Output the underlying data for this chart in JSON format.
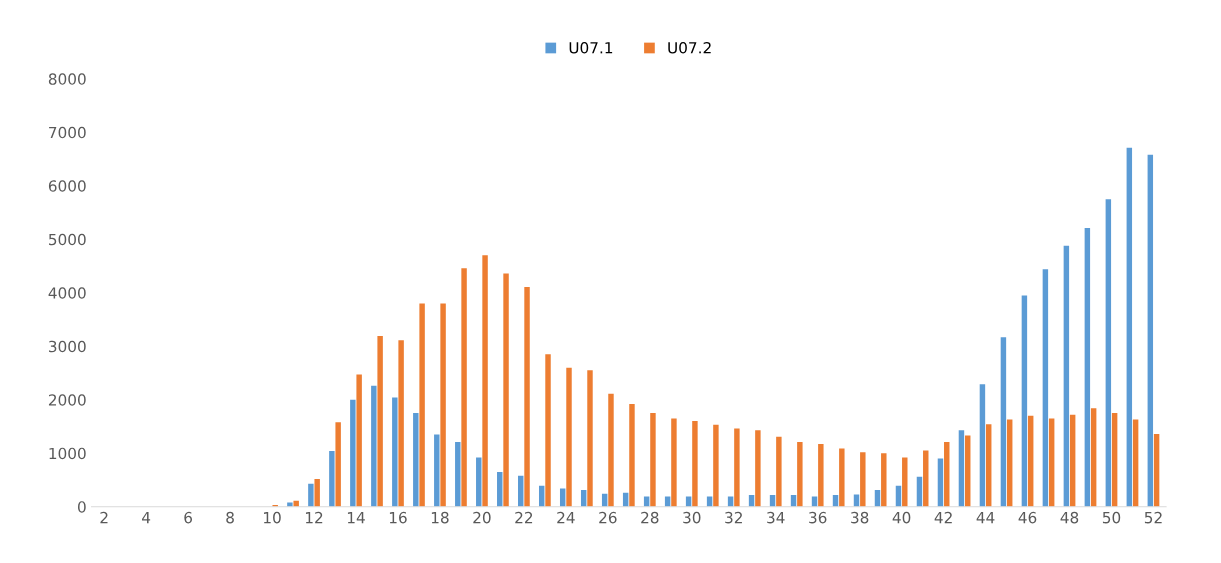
{
  "chart_data": {
    "type": "bar",
    "categories": [
      "2",
      null,
      "4",
      null,
      "6",
      null,
      "8",
      null,
      "10",
      null,
      "12",
      null,
      "14",
      null,
      "16",
      null,
      "18",
      null,
      "20",
      null,
      "22",
      null,
      "24",
      null,
      "26",
      null,
      "28",
      null,
      "30",
      null,
      "32",
      null,
      "34",
      null,
      "36",
      null,
      "38",
      null,
      "40",
      null,
      "42",
      null,
      "44",
      null,
      "46",
      null,
      "48",
      null,
      "50",
      null,
      "52"
    ],
    "series": [
      {
        "name": "U07.1",
        "color": "#5b9bd5",
        "values": [
          0,
          0,
          0,
          0,
          0,
          0,
          0,
          0,
          0,
          80,
          430,
          1040,
          2000,
          2260,
          2040,
          1750,
          1350,
          1210,
          920,
          650,
          580,
          390,
          340,
          310,
          240,
          260,
          190,
          190,
          190,
          190,
          190,
          220,
          220,
          220,
          190,
          220,
          230,
          310,
          390,
          560,
          900,
          1430,
          2290,
          3170,
          3950,
          4440,
          4880,
          5210,
          5750,
          6710,
          6580
        ]
      },
      {
        "name": "U07.2",
        "color": "#ed7d31",
        "values": [
          0,
          0,
          0,
          0,
          0,
          0,
          0,
          0,
          30,
          110,
          520,
          1580,
          2470,
          3190,
          3110,
          3800,
          3800,
          4460,
          4700,
          4360,
          4110,
          2850,
          2600,
          2550,
          2110,
          1920,
          1750,
          1650,
          1600,
          1530,
          1460,
          1430,
          1310,
          1210,
          1170,
          1090,
          1020,
          1000,
          920,
          1050,
          1210,
          1330,
          1540,
          1630,
          1700,
          1650,
          1720,
          1840,
          1750,
          1630,
          1360
        ]
      }
    ],
    "ylim": [
      0,
      8000
    ],
    "yticks": [
      0,
      1000,
      2000,
      3000,
      4000,
      5000,
      6000,
      7000,
      8000
    ],
    "grid": false,
    "legend": "top"
  }
}
